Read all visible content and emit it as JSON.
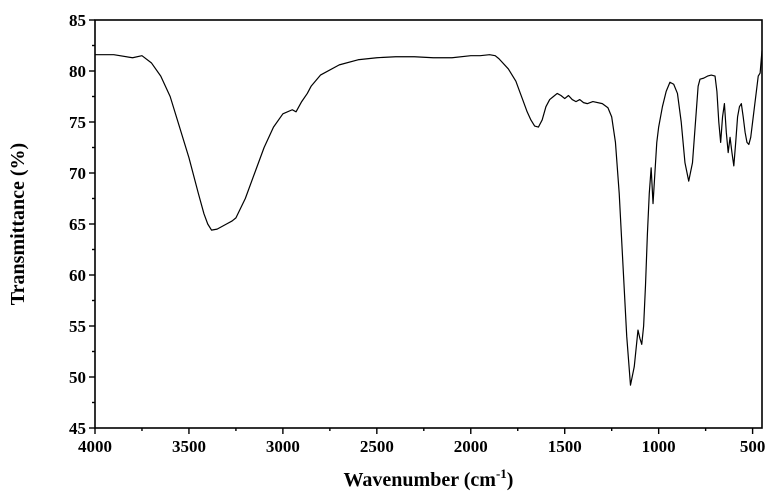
{
  "chart_data": {
    "type": "line",
    "title": "",
    "xlabel": "Wavenumber (cm",
    "xlabel_sup": "-1",
    "xlabel_suffix": ")",
    "ylabel": "Transmittance (%)",
    "xlim": [
      4000,
      450
    ],
    "ylim": [
      45,
      85
    ],
    "x_reversed": true,
    "grid": false,
    "x_ticks": [
      4000,
      3500,
      3000,
      2500,
      2000,
      1500,
      1000,
      500
    ],
    "y_ticks": [
      45,
      50,
      55,
      60,
      65,
      70,
      75,
      80,
      85
    ],
    "line_color": "#000000",
    "series": [
      {
        "x": [
          4000,
          3900,
          3800,
          3750,
          3700,
          3650,
          3600,
          3550,
          3500,
          3450,
          3420,
          3400,
          3380,
          3350,
          3300,
          3270,
          3250,
          3200,
          3150,
          3100,
          3050,
          3000,
          2950,
          2930,
          2900,
          2870,
          2850,
          2800,
          2700,
          2600,
          2500,
          2400,
          2300,
          2200,
          2100,
          2000,
          1950,
          1900,
          1870,
          1850,
          1800,
          1760,
          1740,
          1720,
          1700,
          1680,
          1660,
          1640,
          1620,
          1600,
          1580,
          1560,
          1540,
          1520,
          1500,
          1480,
          1460,
          1440,
          1420,
          1400,
          1380,
          1350,
          1300,
          1270,
          1250,
          1230,
          1210,
          1190,
          1170,
          1150,
          1130,
          1110,
          1100,
          1090,
          1080,
          1070,
          1060,
          1050,
          1040,
          1030,
          1020,
          1010,
          1000,
          980,
          960,
          940,
          920,
          900,
          880,
          860,
          840,
          820,
          800,
          790,
          780,
          760,
          740,
          720,
          700,
          690,
          680,
          670,
          660,
          650,
          640,
          630,
          620,
          610,
          600,
          590,
          580,
          570,
          560,
          550,
          540,
          530,
          520,
          510,
          500,
          490,
          480,
          470,
          460,
          450
        ],
        "y": [
          81.6,
          81.6,
          81.3,
          81.5,
          80.8,
          79.5,
          77.5,
          74.5,
          71.5,
          68,
          66,
          65,
          64.4,
          64.5,
          65,
          65.3,
          65.6,
          67.5,
          70,
          72.5,
          74.5,
          75.8,
          76.2,
          76,
          77,
          77.8,
          78.5,
          79.6,
          80.6,
          81.1,
          81.3,
          81.4,
          81.4,
          81.3,
          81.3,
          81.5,
          81.5,
          81.6,
          81.5,
          81.2,
          80.2,
          79,
          78,
          77,
          76,
          75.2,
          74.6,
          74.5,
          75.2,
          76.5,
          77.2,
          77.5,
          77.8,
          77.6,
          77.3,
          77.6,
          77.2,
          77.0,
          77.2,
          76.9,
          76.8,
          77.0,
          76.8,
          76.4,
          75.5,
          73,
          68,
          61,
          54,
          49.2,
          51,
          54.6,
          53.8,
          53.2,
          55,
          59,
          64,
          68,
          70.5,
          67,
          70,
          73,
          74.5,
          76.5,
          78,
          78.9,
          78.7,
          77.8,
          75,
          71,
          69.2,
          71,
          76,
          78.5,
          79.2,
          79.3,
          79.5,
          79.6,
          79.5,
          78,
          75,
          73,
          75.5,
          76.8,
          74,
          72,
          73.5,
          72,
          70.7,
          73,
          75.5,
          76.5,
          76.8,
          75.5,
          74,
          73,
          72.8,
          73.5,
          75,
          76.5,
          78,
          79.5,
          79.8,
          82
        ]
      }
    ]
  }
}
